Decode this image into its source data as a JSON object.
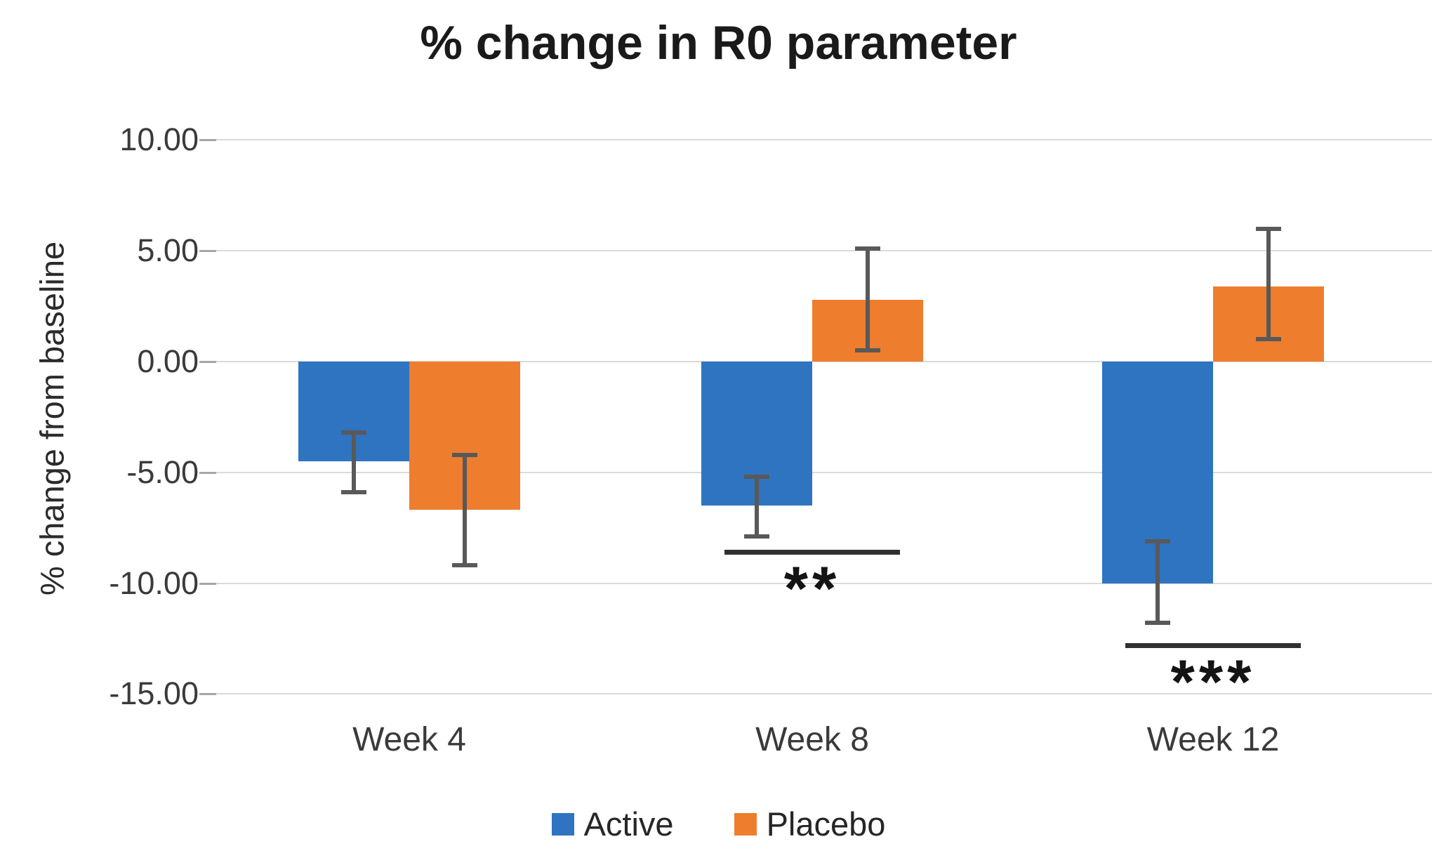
{
  "title": "% change in R0 parameter",
  "chart_data": {
    "type": "bar",
    "title": "% change in R0 parameter",
    "xlabel": "",
    "ylabel": "% change from baseline",
    "categories": [
      "Week 4",
      "Week 8",
      "Week 12"
    ],
    "series": [
      {
        "name": "Active",
        "color": "#2E74C1",
        "values": [
          -4.5,
          -6.5,
          -10.0
        ],
        "error_high": [
          -3.2,
          -5.2,
          -8.1
        ],
        "error_low": [
          -5.9,
          -7.9,
          -11.8
        ]
      },
      {
        "name": "Placebo",
        "color": "#EE7D2E",
        "values": [
          -6.7,
          2.8,
          3.4
        ],
        "error_high": [
          -4.2,
          5.1,
          6.0
        ],
        "error_low": [
          -9.2,
          0.5,
          1.0
        ]
      }
    ],
    "ylim": [
      -15,
      10
    ],
    "y_tick_values": [
      10,
      5,
      0,
      -5,
      -10,
      -15
    ],
    "y_tick_labels": [
      "10.00",
      "5.00",
      "0.00",
      "-5.00",
      "-10.00",
      "-15.00"
    ],
    "grid": true,
    "legend_position": "bottom",
    "annotations": [
      {
        "category": "Week 8",
        "label": "**",
        "line_value": -8.6
      },
      {
        "category": "Week 12",
        "label": "***",
        "line_value": -12.8
      }
    ]
  },
  "colors": {
    "active": "#2E74C1",
    "placebo": "#EE7D2E",
    "gridline": "#DADADA",
    "tick": "#A6A6A6",
    "error_bar": "#595959",
    "significance": "#303030",
    "title_text": "#1A1A1A",
    "axis_text": "#3A3A3A"
  }
}
